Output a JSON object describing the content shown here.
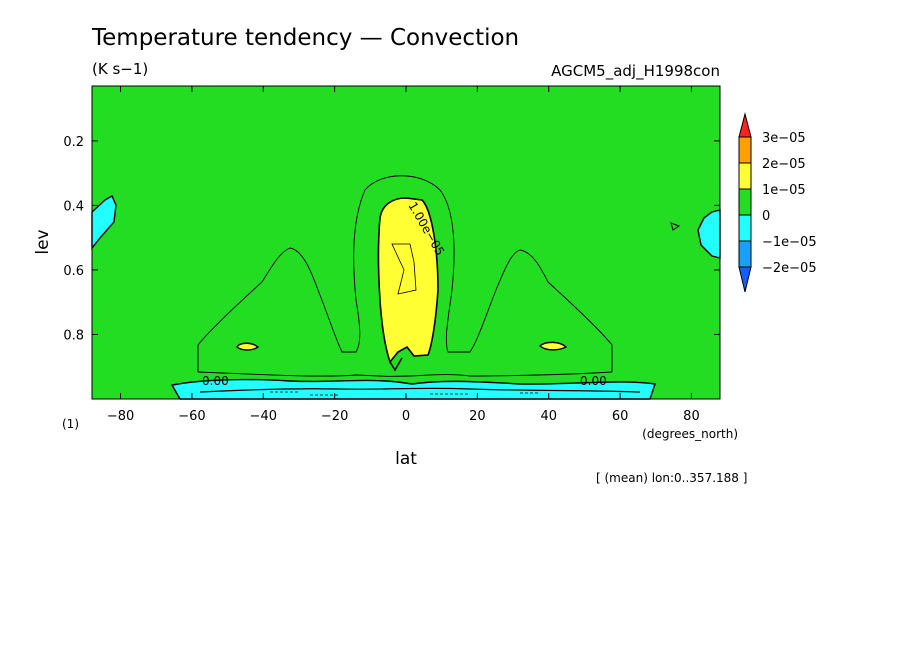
{
  "chart_data": {
    "type": "heatmap",
    "title": "Temperature tendency — Convection",
    "units": "(K s−1)",
    "dataset": "AGCM5_adj_H1998con",
    "xlabel": "lat",
    "xunits": "(degrees_north)",
    "ylabel": "lev",
    "ylabel_note": "(1)",
    "note": "[ (mean) lon:0..357.188 ]",
    "xlim": [
      -88,
      88
    ],
    "ylim": [
      1.0,
      0.03
    ],
    "xticks": [
      -80,
      -60,
      -40,
      -20,
      0,
      20,
      40,
      60,
      80
    ],
    "yticks": [
      0.2,
      0.4,
      0.6,
      0.8
    ],
    "xtick_labels": [
      "−80",
      "−60",
      "−40",
      "−20",
      "0",
      "20",
      "40",
      "60",
      "80"
    ],
    "ytick_labels": [
      "0.2",
      "0.4",
      "0.6",
      "0.8"
    ],
    "contour_levels": [
      -2e-05,
      -1e-05,
      0,
      1e-05,
      2e-05,
      3e-05
    ],
    "colorbar": {
      "labels": [
        "3e−05",
        "2e−05",
        "1e−05",
        "0",
        "−1e−05",
        "−2e−05"
      ],
      "colors": {
        "above_3e-05": "#ff2020",
        "2e-05_3e-05": "#ff9f00",
        "1e-05_2e-05": "#ffff33",
        "0_1e-05": "#22dd22",
        "-1e-05_0": "#22ffff",
        "-2e-05_-1e-05": "#18a0ff",
        "below_-2e-05": "#1060ff"
      }
    },
    "contour_labels": [
      {
        "text": "1.00e−05",
        "lat": 7,
        "lev": 0.52
      },
      {
        "text": "0.00",
        "lat": -53,
        "lev": 0.945
      },
      {
        "text": "0.00",
        "lat": 53,
        "lev": 0.945
      }
    ],
    "regions": [
      {
        "name": "positive-core",
        "value_range": "1e-05..2e-05",
        "lat_range": [
          -8,
          9
        ],
        "lev_range": [
          0.37,
          0.9
        ]
      },
      {
        "name": "negative-surface-layer",
        "value_range": "-1e-05..0",
        "lat_range": [
          -65,
          68
        ],
        "lev_range": [
          0.94,
          1.0
        ]
      },
      {
        "name": "negative-sh-high-lat",
        "value_range": "-1e-05..0",
        "lat_range": [
          -88,
          -82
        ],
        "lev_range": [
          0.36,
          0.53
        ]
      },
      {
        "name": "negative-nh-high-lat",
        "value_range": "-1e-05..0",
        "lat_range": [
          82,
          88
        ],
        "lev_range": [
          0.4,
          0.55
        ]
      },
      {
        "name": "positive-blob-sh",
        "value_range": "1e-05..2e-05",
        "lat_range": [
          -49,
          -43
        ],
        "lev_range": [
          0.82,
          0.85
        ]
      },
      {
        "name": "positive-blob-nh",
        "value_range": "1e-05..2e-05",
        "lat_range": [
          38,
          46
        ],
        "lev_range": [
          0.82,
          0.85
        ]
      }
    ]
  }
}
